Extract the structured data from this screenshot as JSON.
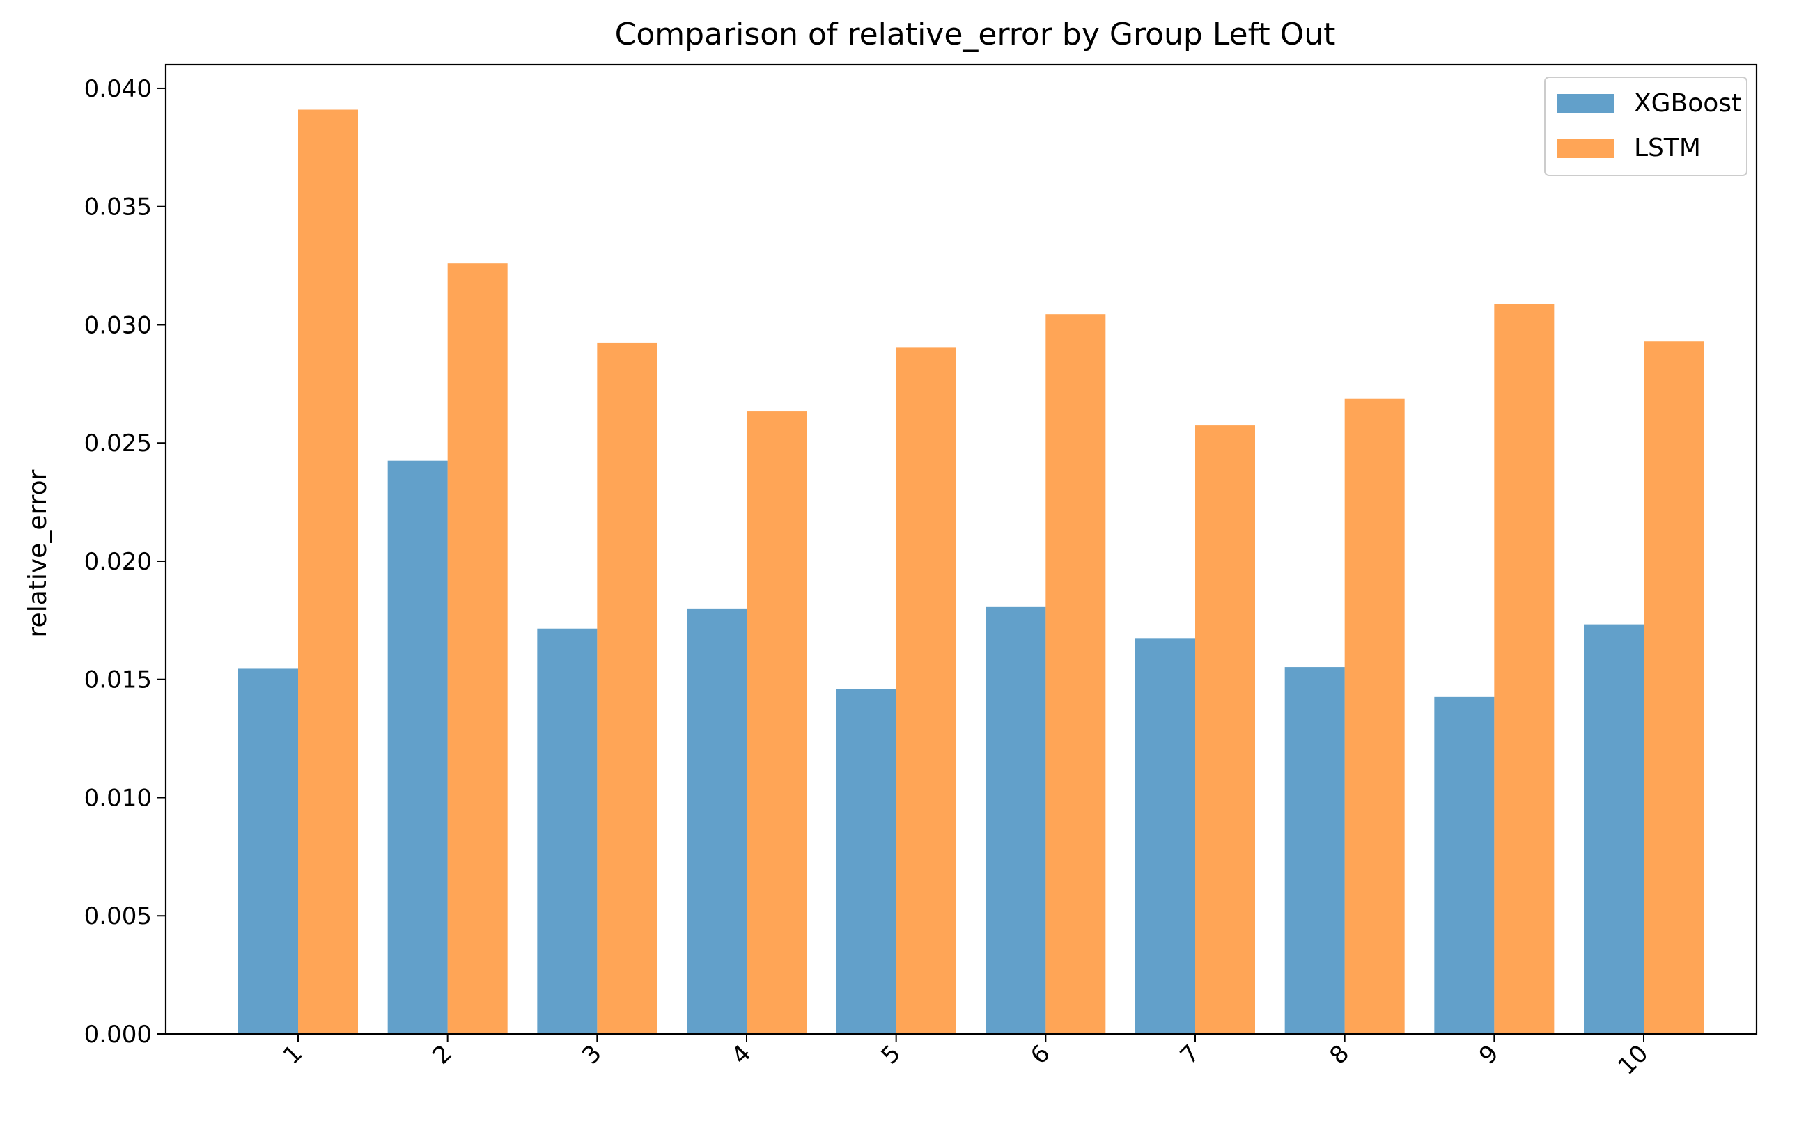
{
  "chart_data": {
    "type": "bar",
    "title": "Comparison of relative_error by Group Left Out",
    "xlabel": "",
    "ylabel": "relative_error",
    "categories": [
      "1",
      "2",
      "3",
      "4",
      "5",
      "6",
      "7",
      "8",
      "9",
      "10"
    ],
    "series": [
      {
        "name": "XGBoost",
        "color": "#1f77b4",
        "opacity": 0.7,
        "values": [
          0.01545,
          0.02425,
          0.01715,
          0.018,
          0.0146,
          0.01806,
          0.01672,
          0.01552,
          0.01426,
          0.01733
        ]
      },
      {
        "name": "LSTM",
        "color": "#ff7f0e",
        "opacity": 0.7,
        "values": [
          0.0391,
          0.0326,
          0.02925,
          0.02633,
          0.02903,
          0.03045,
          0.02574,
          0.02687,
          0.03087,
          0.0293
        ]
      }
    ],
    "ylim": [
      0,
      0.041
    ],
    "yticks": [
      "0.000",
      "0.005",
      "0.010",
      "0.015",
      "0.020",
      "0.025",
      "0.030",
      "0.035",
      "0.040"
    ],
    "xtick_rotation": 45,
    "grid": false,
    "legend_position": "top-right"
  }
}
